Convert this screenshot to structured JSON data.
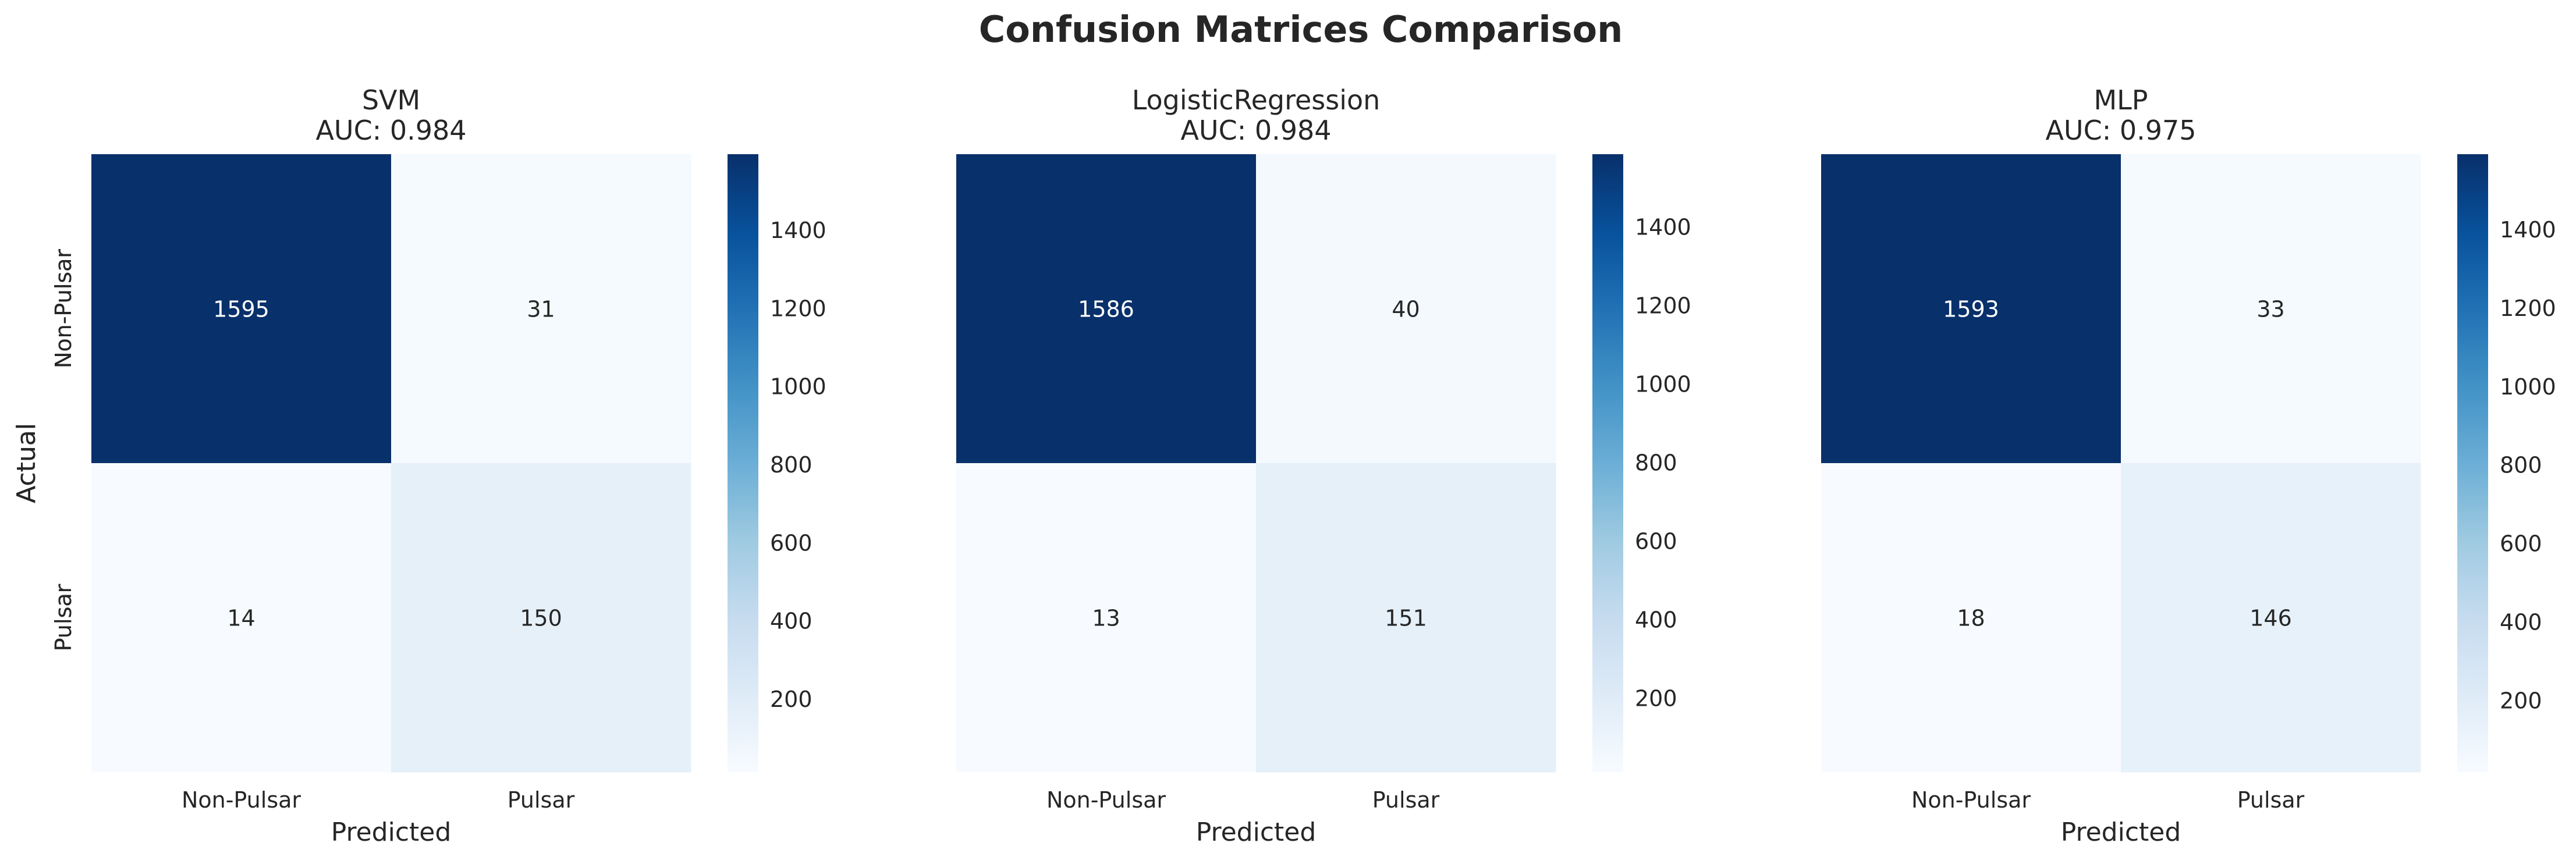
{
  "figure": {
    "title": "Confusion Matrices Comparison"
  },
  "chart_data": [
    {
      "type": "heatmap",
      "title": "SVM",
      "subtitle": "AUC: 0.984",
      "xlabel": "Predicted",
      "ylabel": "Actual",
      "x_categories": [
        "Non-Pulsar",
        "Pulsar"
      ],
      "y_categories": [
        "Non-Pulsar",
        "Pulsar"
      ],
      "values": [
        [
          1595,
          31
        ],
        [
          14,
          150
        ]
      ],
      "colormap": "Blues",
      "colorbar": {
        "ticks": [
          200,
          400,
          600,
          800,
          1000,
          1200,
          1400
        ],
        "range": [
          14,
          1595
        ]
      },
      "grid": false
    },
    {
      "type": "heatmap",
      "title": "LogisticRegression",
      "subtitle": "AUC: 0.984",
      "xlabel": "Predicted",
      "ylabel": "Actual",
      "x_categories": [
        "Non-Pulsar",
        "Pulsar"
      ],
      "y_categories": [
        "Non-Pulsar",
        "Pulsar"
      ],
      "values": [
        [
          1586,
          40
        ],
        [
          13,
          151
        ]
      ],
      "colormap": "Blues",
      "colorbar": {
        "ticks": [
          200,
          400,
          600,
          800,
          1000,
          1200,
          1400
        ],
        "range": [
          13,
          1586
        ]
      },
      "grid": false
    },
    {
      "type": "heatmap",
      "title": "MLP",
      "subtitle": "AUC: 0.975",
      "xlabel": "Predicted",
      "ylabel": "Actual",
      "x_categories": [
        "Non-Pulsar",
        "Pulsar"
      ],
      "y_categories": [
        "Non-Pulsar",
        "Pulsar"
      ],
      "values": [
        [
          1593,
          33
        ],
        [
          18,
          146
        ]
      ],
      "colormap": "Blues",
      "colorbar": {
        "ticks": [
          200,
          400,
          600,
          800,
          1000,
          1200,
          1400
        ],
        "range": [
          18,
          1593
        ]
      },
      "grid": false
    }
  ]
}
